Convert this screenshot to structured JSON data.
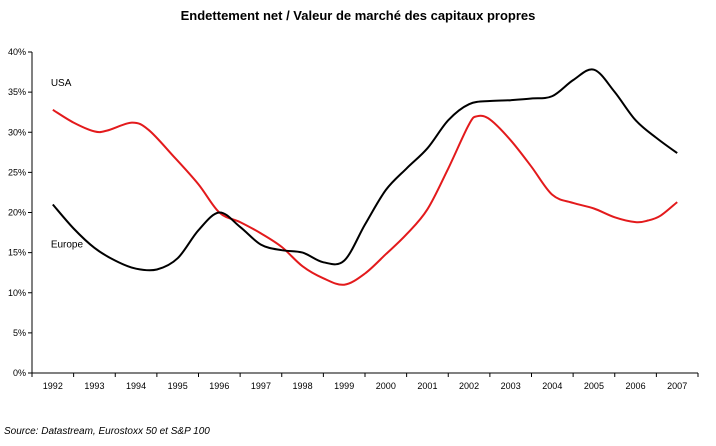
{
  "chart_data": {
    "type": "line",
    "title": "Endettement net / Valeur de marché des capitaux propres",
    "source": "Source: Datastream, Eurostoxx 50 et S&P 100",
    "xlabel": "",
    "ylabel": "",
    "categories": [
      "1992",
      "1993",
      "1994",
      "1995",
      "1996",
      "1997",
      "1998",
      "1999",
      "2000",
      "2001",
      "2002",
      "2003",
      "2004",
      "2005",
      "2006",
      "2007"
    ],
    "ylim": [
      0,
      40
    ],
    "y_ticks": [
      "0%",
      "5%",
      "10%",
      "15%",
      "20%",
      "25%",
      "30%",
      "35%",
      "40%"
    ],
    "grid": false,
    "legend": "inline labels",
    "series": [
      {
        "name": "USA",
        "color": "#e31a1c",
        "x": [
          1992,
          1992.5,
          1993,
          1993.3,
          1993.9,
          1994.3,
          1994.9,
          1995.5,
          1996,
          1996.5,
          1997,
          1997.5,
          1998,
          1998.5,
          1999,
          1999.5,
          2000,
          2000.5,
          2001,
          2001.5,
          2002,
          2002.2,
          2002.5,
          2003,
          2003.5,
          2004,
          2004.5,
          2005,
          2005.5,
          2006,
          2006.3,
          2006.6,
          2007
        ],
        "values": [
          32.8,
          31.2,
          30.1,
          30.2,
          31.2,
          30.3,
          27.0,
          23.5,
          20.0,
          18.8,
          17.4,
          15.7,
          13.3,
          11.8,
          11.0,
          12.4,
          14.8,
          17.3,
          20.4,
          25.5,
          31.0,
          32.0,
          31.6,
          29.0,
          25.7,
          22.2,
          21.2,
          20.5,
          19.4,
          18.8,
          19.0,
          19.6,
          21.3
        ]
      },
      {
        "name": "Europe",
        "color": "#000000",
        "x": [
          1992,
          1992.5,
          1993,
          1993.5,
          1994,
          1994.5,
          1995,
          1995.5,
          1996,
          1996.5,
          1997,
          1997.5,
          1998,
          1998.5,
          1999,
          1999.5,
          2000,
          2000.5,
          2001,
          2001.5,
          2002,
          2002.5,
          2003,
          2003.5,
          2004,
          2004.5,
          2005,
          2005.5,
          2006,
          2006.5,
          2007
        ],
        "values": [
          21.0,
          18.0,
          15.6,
          14.0,
          13.0,
          12.9,
          14.3,
          17.8,
          20.0,
          18.2,
          16.0,
          15.3,
          15.0,
          13.8,
          14.0,
          18.5,
          22.8,
          25.5,
          28.0,
          31.5,
          33.5,
          33.9,
          34.0,
          34.2,
          34.5,
          36.5,
          37.8,
          35.0,
          31.5,
          29.3,
          27.4
        ]
      }
    ],
    "annotations": [
      {
        "text": "USA",
        "series": "USA"
      },
      {
        "text": "Europe",
        "series": "Europe"
      }
    ]
  }
}
